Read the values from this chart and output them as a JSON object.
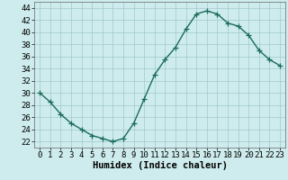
{
  "x": [
    0,
    1,
    2,
    3,
    4,
    5,
    6,
    7,
    8,
    9,
    10,
    11,
    12,
    13,
    14,
    15,
    16,
    17,
    18,
    19,
    20,
    21,
    22,
    23
  ],
  "y": [
    30,
    28.5,
    26.5,
    25,
    24,
    23,
    22.5,
    22,
    22.5,
    25,
    29,
    33,
    35.5,
    37.5,
    40.5,
    43,
    43.5,
    43,
    41.5,
    41,
    39.5,
    37,
    35.5,
    34.5
  ],
  "line_color": "#1a6b5a",
  "marker": "+",
  "marker_size": 4,
  "bg_color": "#ceeced",
  "grid_color": "#a0c8cc",
  "xlabel": "Humidex (Indice chaleur)",
  "ylim": [
    21,
    45
  ],
  "xlim": [
    -0.5,
    23.5
  ],
  "yticks": [
    22,
    24,
    26,
    28,
    30,
    32,
    34,
    36,
    38,
    40,
    42,
    44
  ],
  "xticks": [
    0,
    1,
    2,
    3,
    4,
    5,
    6,
    7,
    8,
    9,
    10,
    11,
    12,
    13,
    14,
    15,
    16,
    17,
    18,
    19,
    20,
    21,
    22,
    23
  ],
  "tick_fontsize": 6.5,
  "xlabel_fontsize": 7.5,
  "line_width": 1.0
}
